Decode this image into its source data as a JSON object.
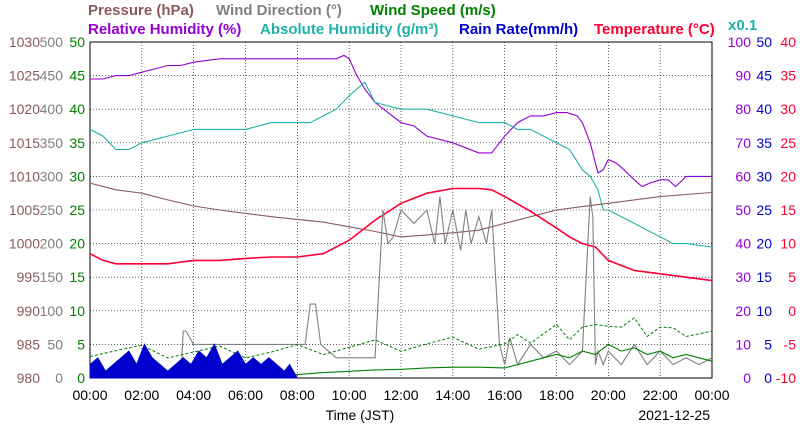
{
  "chart_data": {
    "type": "line",
    "date": "2021-12-25",
    "x_label": "Time (JST)",
    "x_ticks": [
      "00:00",
      "02:00",
      "04:00",
      "06:00",
      "08:00",
      "10:00",
      "12:00",
      "14:00",
      "16:00",
      "18:00",
      "20:00",
      "22:00",
      "00:00"
    ],
    "xlim": [
      0,
      24
    ],
    "grid": true,
    "legend": {
      "line1": [
        {
          "label": "Pressure (hPa)",
          "color": "#8b5a5a"
        },
        {
          "label": "Wind Direction (°)",
          "color": "#808080"
        },
        {
          "label": "Wind Speed (m/s)",
          "color": "#008000"
        }
      ],
      "line2": [
        {
          "label": "Relative Humidity (%)",
          "color": "#9400d3"
        },
        {
          "label": "Absolute Humidity (g/m³)",
          "color": "#20b2aa"
        },
        {
          "label": "Rain Rate(mm/h)",
          "color": "#0000cd"
        },
        {
          "label": "Temperature (°C)",
          "color": "#ff0033"
        }
      ],
      "rain_scale_note": "x0.1"
    },
    "axes": {
      "pressure": {
        "color": "#8b5a5a",
        "ylim": [
          980,
          1030
        ],
        "ticks": [
          "1030",
          "1025",
          "1020",
          "1015",
          "1010",
          "1005",
          "1000",
          "995",
          "990",
          "985",
          "980"
        ]
      },
      "wind_direction": {
        "color": "#808080",
        "ylim": [
          0,
          500
        ],
        "ticks": [
          "500",
          "450",
          "400",
          "350",
          "300",
          "250",
          "200",
          "150",
          "100",
          "50",
          "0"
        ]
      },
      "wind_speed": {
        "color": "#008000",
        "ylim": [
          0,
          50
        ],
        "ticks": [
          "50",
          "45",
          "40",
          "35",
          "30",
          "25",
          "20",
          "15",
          "10",
          "5",
          "0"
        ]
      },
      "humidity": {
        "color": "#9400d3",
        "ylim": [
          0,
          100
        ],
        "ticks": [
          "100",
          "90",
          "80",
          "70",
          "60",
          "50",
          "40",
          "30",
          "20",
          "10",
          "0"
        ]
      },
      "rain_rate": {
        "color": "#0000cd",
        "ylim": [
          0,
          50
        ],
        "ticks": [
          "50",
          "45",
          "40",
          "35",
          "30",
          "25",
          "20",
          "15",
          "10",
          "5",
          "0"
        ]
      },
      "temperature": {
        "color": "#ff0033",
        "ylim": [
          -10,
          40
        ],
        "ticks": [
          "40",
          "35",
          "30",
          "25",
          "20",
          "15",
          "10",
          "5",
          "0",
          "-5",
          "-10"
        ]
      }
    },
    "series": [
      {
        "name": "Relative Humidity (%)",
        "axis": "humidity",
        "color": "#9400d3",
        "x": [
          0,
          0.5,
          1,
          1.5,
          2,
          2.5,
          3,
          3.5,
          4,
          5,
          6,
          7,
          8,
          9,
          9.5,
          9.8,
          10,
          10.3,
          10.6,
          11,
          11.5,
          12,
          12.5,
          13,
          14,
          15,
          15.5,
          16,
          16.5,
          17,
          17.5,
          18,
          18.4,
          18.8,
          19,
          19.3,
          19.6,
          19.8,
          20,
          20.3,
          20.6,
          21,
          21.3,
          21.6,
          22,
          22.3,
          22.6,
          23,
          23.5,
          24
        ],
        "y": [
          89,
          89,
          90,
          90,
          91,
          92,
          93,
          93,
          94,
          95,
          95,
          95,
          95,
          95,
          95,
          96,
          95,
          90,
          86,
          82,
          79,
          76,
          75,
          72,
          70,
          67,
          67,
          72,
          76,
          78,
          78,
          79,
          79,
          78,
          76,
          70,
          61,
          62,
          65,
          64,
          62,
          59,
          57,
          58,
          59,
          59,
          57,
          60,
          60,
          60
        ]
      },
      {
        "name": "Absolute Humidity (g/m³)",
        "axis": "wind_speed",
        "color": "#20b2aa",
        "x": [
          0,
          0.5,
          1,
          1.5,
          2,
          3,
          4,
          5,
          6,
          7,
          8,
          8.5,
          9,
          9.5,
          10,
          10.3,
          10.6,
          11,
          12,
          13,
          14,
          15,
          15.5,
          16,
          16.5,
          17,
          17.5,
          18,
          18.5,
          19,
          19.3,
          19.6,
          19.8,
          20,
          20.5,
          21,
          21.5,
          22,
          22.5,
          23,
          24
        ],
        "y": [
          37,
          36,
          34,
          34,
          35,
          36,
          37,
          37,
          37,
          38,
          38,
          38,
          39,
          40,
          42,
          43,
          44,
          41,
          40,
          40,
          39,
          38,
          38,
          38,
          37,
          37,
          36,
          35,
          34,
          31,
          30,
          28,
          25,
          25,
          24,
          23,
          22,
          21,
          20,
          20,
          19.5
        ]
      },
      {
        "name": "Pressure (hPa)",
        "axis": "pressure",
        "color": "#8b5a5a",
        "x": [
          0,
          1,
          2,
          3,
          4,
          5,
          6,
          7,
          8,
          9,
          10,
          11,
          12,
          13,
          14,
          15,
          16,
          17,
          18,
          19,
          20,
          21,
          22,
          23,
          24
        ],
        "y": [
          1009,
          1008,
          1007.5,
          1006.5,
          1005.6,
          1005,
          1004.5,
          1004,
          1003.6,
          1003.2,
          1002.5,
          1001.8,
          1001,
          1001.3,
          1001.6,
          1002,
          1003,
          1004,
          1005,
          1005.5,
          1006,
          1006.5,
          1007,
          1007.3,
          1007.6
        ]
      },
      {
        "name": "Temperature (°C)",
        "axis": "temperature",
        "color": "#ff0033",
        "x": [
          0,
          0.5,
          1,
          2,
          3,
          4,
          5,
          6,
          7,
          8,
          9,
          10,
          11,
          12,
          13,
          14,
          15,
          15.5,
          16,
          17,
          18,
          18.5,
          19,
          19.5,
          20,
          21,
          22,
          23,
          24
        ],
        "y": [
          8.5,
          7.5,
          7,
          7,
          7,
          7.5,
          7.5,
          7.8,
          8,
          8,
          8.5,
          10.5,
          13.5,
          16,
          17.5,
          18.2,
          18.2,
          18,
          17,
          14.8,
          12.3,
          11,
          10,
          9.5,
          7.5,
          6,
          5.5,
          5,
          4.5
        ]
      },
      {
        "name": "Wind Direction (°)",
        "axis": "wind_direction",
        "color": "#808080",
        "x": [
          0,
          1,
          2,
          3,
          3.5,
          3.6,
          3.7,
          4.0,
          4.2,
          5,
          6,
          7,
          8,
          8.3,
          8.5,
          8.7,
          8.9,
          9.5,
          10,
          11,
          11.3,
          11.5,
          11.7,
          12,
          12.5,
          13,
          13.3,
          13.5,
          13.7,
          14,
          14.3,
          14.5,
          14.7,
          15,
          15.3,
          15.5,
          15.8,
          16,
          16.2,
          16.5,
          17,
          17.5,
          18,
          18.5,
          19,
          19.3,
          19.4,
          19.5,
          19.6,
          19.8,
          20,
          20.5,
          21,
          21.5,
          22,
          22.5,
          23,
          23.5,
          24
        ],
        "y": [
          0,
          0,
          0,
          0,
          0,
          70,
          70,
          50,
          50,
          50,
          50,
          50,
          50,
          50,
          110,
          110,
          50,
          30,
          30,
          30,
          250,
          200,
          210,
          250,
          230,
          250,
          200,
          270,
          200,
          250,
          190,
          250,
          200,
          240,
          200,
          250,
          50,
          20,
          60,
          20,
          50,
          30,
          40,
          20,
          40,
          270,
          240,
          20,
          40,
          20,
          40,
          20,
          50,
          20,
          40,
          20,
          30,
          20,
          30
        ]
      },
      {
        "name": "Wind Speed (m/s)",
        "axis": "wind_speed",
        "color": "#008000",
        "dashed_gust": true,
        "x": [
          0,
          1,
          2,
          3,
          4,
          5,
          6,
          7,
          8,
          9,
          10,
          11,
          12,
          13,
          14,
          15,
          16,
          16.5,
          17,
          17.5,
          18,
          18.5,
          19,
          19.5,
          20,
          20.5,
          21,
          21.5,
          22,
          22.5,
          23,
          23.5,
          24
        ],
        "y": [
          0.5,
          0.5,
          0.4,
          0.3,
          0.3,
          0.3,
          0.3,
          0.3,
          0.5,
          0.8,
          1,
          1.2,
          1.3,
          1.5,
          1.6,
          1.6,
          1.5,
          2,
          2.5,
          3,
          3.5,
          3,
          4,
          3.5,
          5,
          4,
          4.5,
          3.5,
          4,
          3,
          3.5,
          3,
          2.5
        ]
      },
      {
        "name": "Rain Rate(mm/h)",
        "axis": "rain_rate",
        "color": "#0000cd",
        "type": "area",
        "x": [
          0,
          0.3,
          0.6,
          0.9,
          1.2,
          1.5,
          1.8,
          2.1,
          2.4,
          2.7,
          3.0,
          3.3,
          3.6,
          3.9,
          4.2,
          4.5,
          4.8,
          5.1,
          5.4,
          5.7,
          6.0,
          6.3,
          6.6,
          6.9,
          7.2,
          7.5,
          7.7,
          8.0
        ],
        "y": [
          2,
          3,
          1,
          2,
          3,
          4,
          2,
          5,
          3,
          2,
          1,
          2,
          3,
          2,
          4,
          3,
          5,
          2,
          3,
          4,
          2,
          3,
          2,
          3,
          2,
          1,
          2,
          0
        ]
      }
    ]
  }
}
